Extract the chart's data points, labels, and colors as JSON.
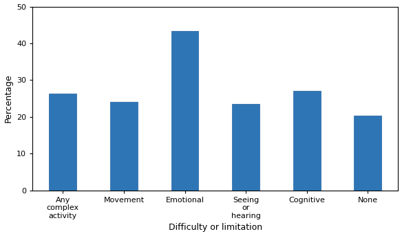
{
  "categories": [
    "Any\ncomplex\nactivity",
    "Movement",
    "Emotional",
    "Seeing\nor\nhearing",
    "Cognitive",
    "None"
  ],
  "values": [
    26.3,
    24.0,
    43.3,
    23.6,
    27.0,
    20.3
  ],
  "bar_color": "#2E75B6",
  "bar_edge_color": "#2060A0",
  "ylabel": "Percentage",
  "xlabel": "Difficulty or limitation",
  "ylim": [
    0,
    50
  ],
  "yticks": [
    0,
    10,
    20,
    30,
    40,
    50
  ],
  "ylabel_fontsize": 9,
  "xlabel_fontsize": 9,
  "tick_fontsize": 8,
  "bar_width": 0.45,
  "background_color": "#ffffff"
}
